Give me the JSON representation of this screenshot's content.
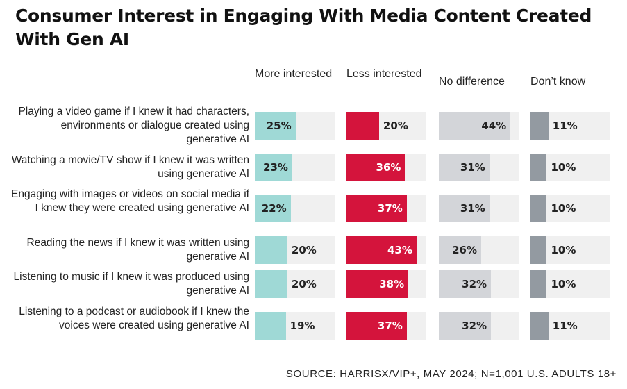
{
  "title": "Consumer Interest in Engaging With Media Content Created With Gen AI",
  "source": "SOURCE: HARRISX/VIP+, MAY 2024; N=1,001 U.S. ADULTS 18+",
  "colors": {
    "more": "#9fd9d6",
    "less": "#d4143c",
    "nodiff": "#d3d5d9",
    "dontknow": "#939aa1",
    "track": "#f0f0f0"
  },
  "chart_data": {
    "type": "bar",
    "orientation": "horizontal",
    "stacked": false,
    "value_suffix": "%",
    "categories": [
      "Playing a video game if I knew it had characters, environments or dialogue created using generative AI",
      "Watching a movie/TV show if I knew it was written using generative AI",
      "Engaging with images or videos on social media if I knew they were created using generative AI",
      "Reading the news if I knew it was written using generative AI",
      "Listening to music if I knew it was produced using generative AI",
      "Listening to a podcast or audiobook if I knew the voices were created using generative AI"
    ],
    "series": [
      {
        "name": "More interested",
        "key": "more",
        "values": [
          25,
          23,
          22,
          20,
          20,
          19
        ]
      },
      {
        "name": "Less interested",
        "key": "less",
        "values": [
          20,
          36,
          37,
          43,
          38,
          37
        ]
      },
      {
        "name": "No difference",
        "key": "nodiff",
        "values": [
          44,
          31,
          31,
          26,
          32,
          32
        ]
      },
      {
        "name": "Don’t know",
        "key": "dontknow",
        "values": [
          11,
          10,
          10,
          10,
          10,
          11
        ]
      }
    ],
    "xlim": [
      0,
      50
    ]
  }
}
